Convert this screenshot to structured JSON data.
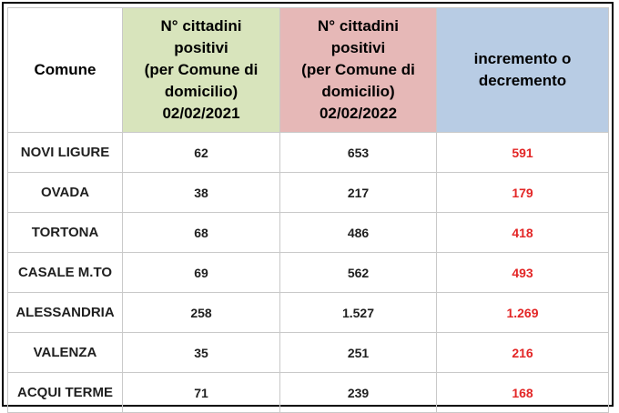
{
  "headers": {
    "comune": "Comune",
    "col2021": [
      "N° cittadini",
      "positivi",
      "(per Comune di",
      "domicilio)",
      "02/02/2021"
    ],
    "col2022": [
      "N° cittadini",
      "positivi",
      "(per Comune di",
      "domicilio)",
      "02/02/2022"
    ],
    "delta": [
      "incremento o",
      "decremento"
    ]
  },
  "rows": [
    {
      "comune": "NOVI LIGURE",
      "v2021": "62",
      "v2022": "653",
      "delta": "591"
    },
    {
      "comune": "OVADA",
      "v2021": "38",
      "v2022": "217",
      "delta": "179"
    },
    {
      "comune": "TORTONA",
      "v2021": "68",
      "v2022": "486",
      "delta": "418"
    },
    {
      "comune": "CASALE M.TO",
      "v2021": "69",
      "v2022": "562",
      "delta": "493"
    },
    {
      "comune": "ALESSANDRIA",
      "v2021": "258",
      "v2022": "1.527",
      "delta": "1.269"
    },
    {
      "comune": "VALENZA",
      "v2021": "35",
      "v2022": "251",
      "delta": "216"
    },
    {
      "comune": "ACQUI TERME",
      "v2021": "71",
      "v2022": "239",
      "delta": "168"
    }
  ],
  "colors": {
    "header_2021": "#d8e4bc",
    "header_2022": "#e6b8b7",
    "header_delta": "#b8cce4",
    "delta_text": "#e32626"
  }
}
